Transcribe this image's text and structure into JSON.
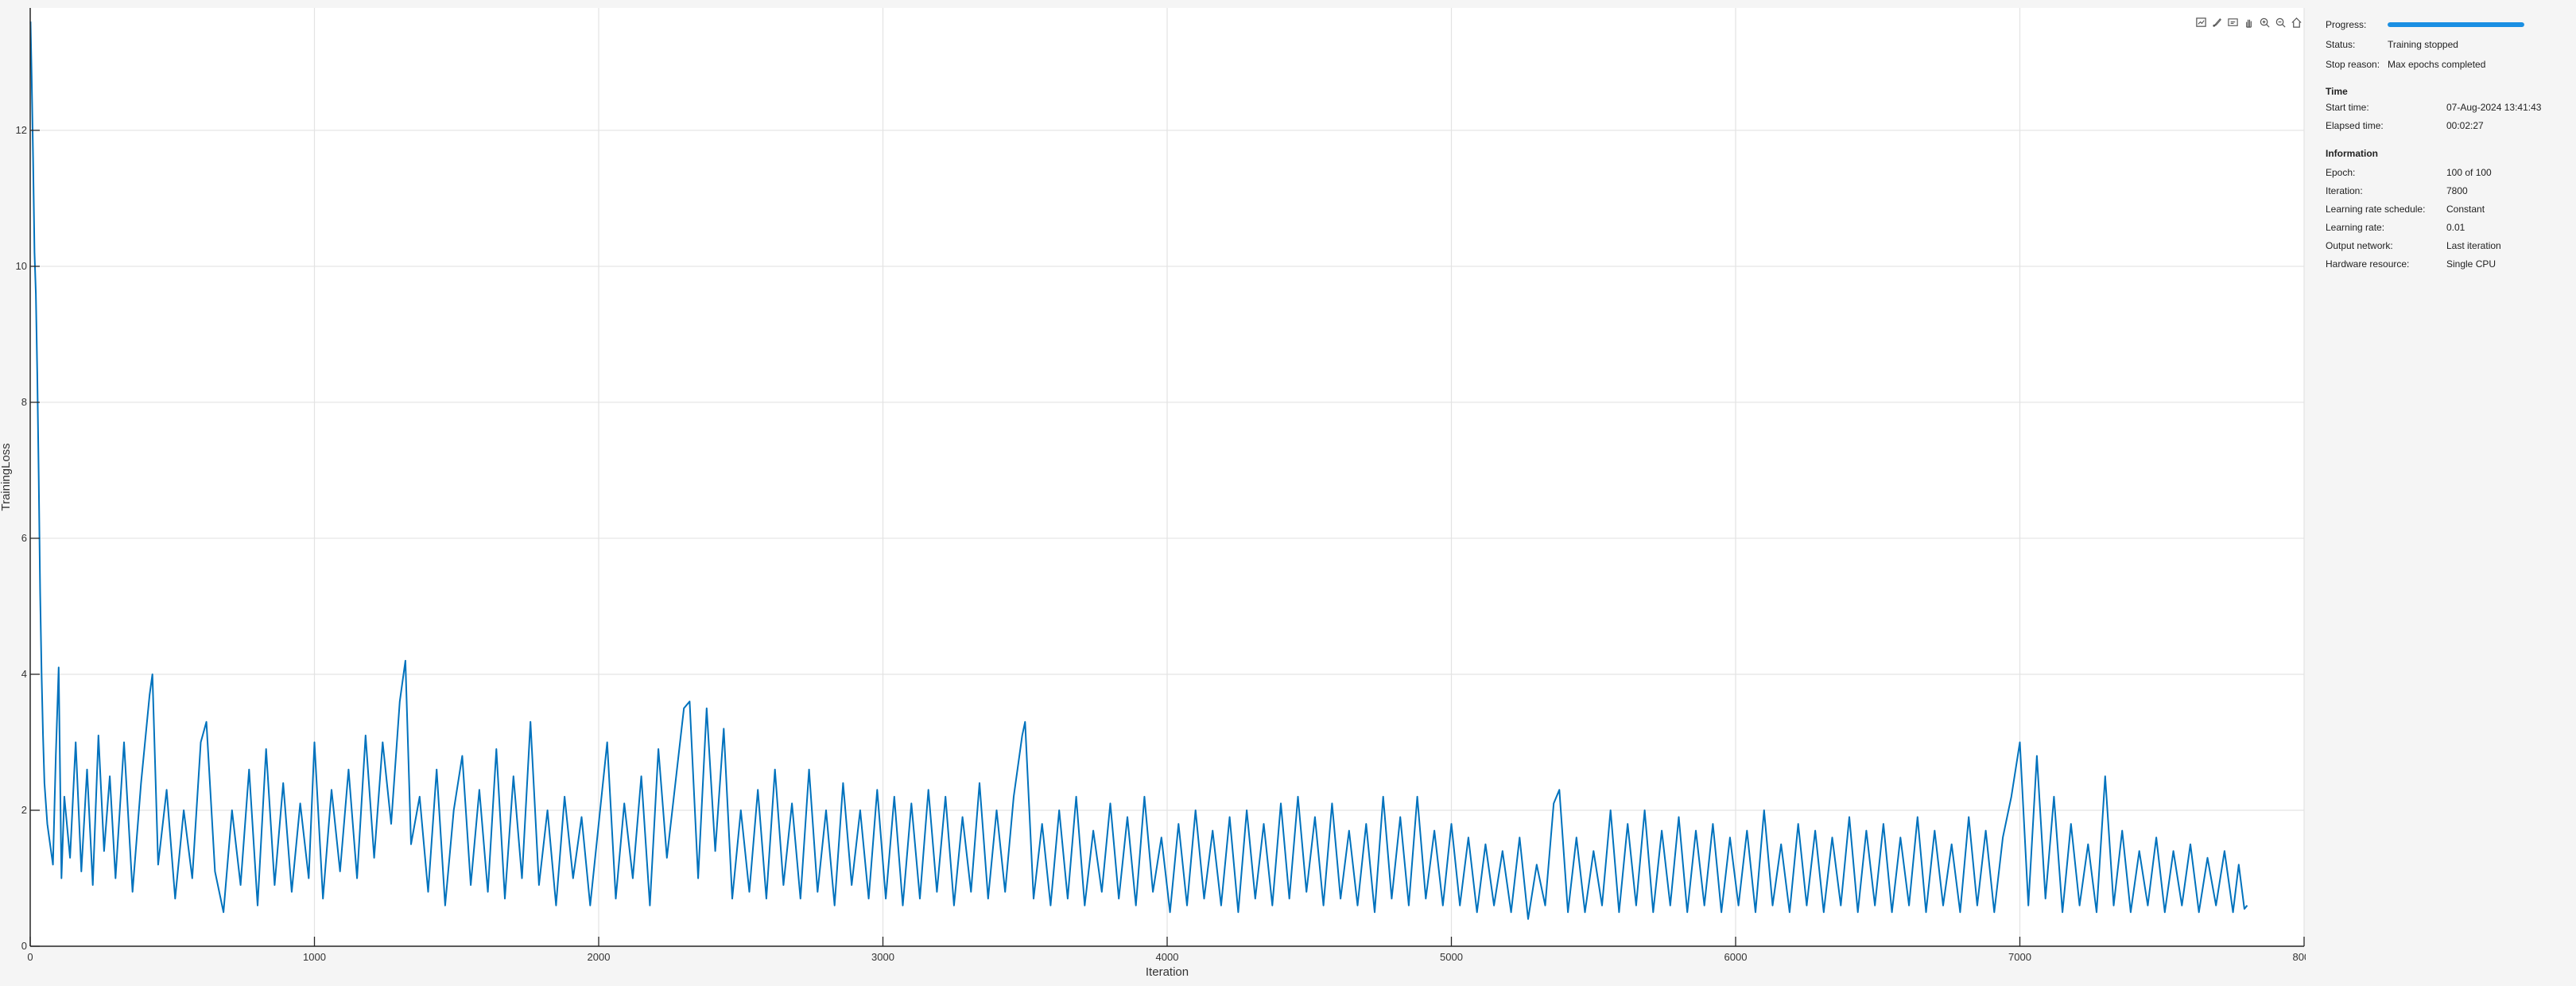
{
  "toolbar": {
    "icons": [
      "export-icon",
      "brush-icon",
      "datatip-icon",
      "pan-icon",
      "zoom-in-icon",
      "zoom-out-icon",
      "home-icon"
    ]
  },
  "info": {
    "progress_label": "Progress:",
    "progress_fraction": 1.0,
    "status_label": "Status:",
    "status_value": "Training stopped",
    "stop_reason_label": "Stop reason:",
    "stop_reason_value": "Max epochs completed",
    "time_title": "Time",
    "start_time_label": "Start time:",
    "start_time_value": "07-Aug-2024 13:41:43",
    "elapsed_time_label": "Elapsed time:",
    "elapsed_time_value": "00:02:27",
    "information_title": "Information",
    "epoch_label": "Epoch:",
    "epoch_value": "100 of 100",
    "iteration_label": "Iteration:",
    "iteration_value": "7800",
    "lr_schedule_label": "Learning rate schedule:",
    "lr_schedule_value": "Constant",
    "lr_label": "Learning rate:",
    "lr_value": "0.01",
    "output_network_label": "Output network:",
    "output_network_value": "Last iteration",
    "hardware_label": "Hardware resource:",
    "hardware_value": "Single CPU"
  },
  "chart_data": {
    "type": "line",
    "xlabel": "Iteration",
    "ylabel": "TrainingLoss",
    "xlim": [
      0,
      8000
    ],
    "ylim": [
      0,
      13.8
    ],
    "xticks": [
      0,
      1000,
      2000,
      3000,
      4000,
      5000,
      6000,
      7000,
      8000
    ],
    "yticks": [
      0,
      2,
      4,
      6,
      8,
      10,
      12
    ],
    "grid": true,
    "color": "#0072BD",
    "series": [
      {
        "points": [
          [
            1,
            13.6
          ],
          [
            5,
            12.8
          ],
          [
            10,
            11.6
          ],
          [
            15,
            10.2
          ],
          [
            20,
            9.6
          ],
          [
            25,
            8.4
          ],
          [
            30,
            6.9
          ],
          [
            35,
            5.2
          ],
          [
            40,
            4.0
          ],
          [
            45,
            3.1
          ],
          [
            50,
            2.4
          ],
          [
            60,
            1.8
          ],
          [
            70,
            1.5
          ],
          [
            80,
            1.2
          ],
          [
            90,
            2.8
          ],
          [
            100,
            4.1
          ],
          [
            110,
            1.0
          ],
          [
            120,
            2.2
          ],
          [
            140,
            1.3
          ],
          [
            160,
            3.0
          ],
          [
            180,
            1.1
          ],
          [
            200,
            2.6
          ],
          [
            220,
            0.9
          ],
          [
            240,
            3.1
          ],
          [
            260,
            1.4
          ],
          [
            280,
            2.5
          ],
          [
            300,
            1.0
          ],
          [
            330,
            3.0
          ],
          [
            360,
            0.8
          ],
          [
            390,
            2.4
          ],
          [
            420,
            3.7
          ],
          [
            430,
            4.0
          ],
          [
            450,
            1.2
          ],
          [
            480,
            2.3
          ],
          [
            510,
            0.7
          ],
          [
            540,
            2.0
          ],
          [
            570,
            1.0
          ],
          [
            600,
            3.0
          ],
          [
            620,
            3.3
          ],
          [
            650,
            1.1
          ],
          [
            680,
            0.5
          ],
          [
            710,
            2.0
          ],
          [
            740,
            0.9
          ],
          [
            770,
            2.6
          ],
          [
            800,
            0.6
          ],
          [
            830,
            2.9
          ],
          [
            860,
            0.9
          ],
          [
            890,
            2.4
          ],
          [
            920,
            0.8
          ],
          [
            950,
            2.1
          ],
          [
            980,
            1.0
          ],
          [
            1000,
            3.0
          ],
          [
            1030,
            0.7
          ],
          [
            1060,
            2.3
          ],
          [
            1090,
            1.1
          ],
          [
            1120,
            2.6
          ],
          [
            1150,
            1.0
          ],
          [
            1180,
            3.1
          ],
          [
            1210,
            1.3
          ],
          [
            1240,
            3.0
          ],
          [
            1270,
            1.8
          ],
          [
            1300,
            3.6
          ],
          [
            1320,
            4.2
          ],
          [
            1340,
            1.5
          ],
          [
            1370,
            2.2
          ],
          [
            1400,
            0.8
          ],
          [
            1430,
            2.6
          ],
          [
            1460,
            0.6
          ],
          [
            1490,
            2.0
          ],
          [
            1520,
            2.8
          ],
          [
            1550,
            0.9
          ],
          [
            1580,
            2.3
          ],
          [
            1610,
            0.8
          ],
          [
            1640,
            2.9
          ],
          [
            1670,
            0.7
          ],
          [
            1700,
            2.5
          ],
          [
            1730,
            1.0
          ],
          [
            1760,
            3.3
          ],
          [
            1790,
            0.9
          ],
          [
            1820,
            2.0
          ],
          [
            1850,
            0.6
          ],
          [
            1880,
            2.2
          ],
          [
            1910,
            1.0
          ],
          [
            1940,
            1.9
          ],
          [
            1970,
            0.6
          ],
          [
            2000,
            1.8
          ],
          [
            2030,
            3.0
          ],
          [
            2060,
            0.7
          ],
          [
            2090,
            2.1
          ],
          [
            2120,
            1.0
          ],
          [
            2150,
            2.5
          ],
          [
            2180,
            0.6
          ],
          [
            2210,
            2.9
          ],
          [
            2240,
            1.3
          ],
          [
            2270,
            2.4
          ],
          [
            2300,
            3.5
          ],
          [
            2320,
            3.6
          ],
          [
            2350,
            1.0
          ],
          [
            2380,
            3.5
          ],
          [
            2410,
            1.4
          ],
          [
            2440,
            3.2
          ],
          [
            2470,
            0.7
          ],
          [
            2500,
            2.0
          ],
          [
            2530,
            0.8
          ],
          [
            2560,
            2.3
          ],
          [
            2590,
            0.7
          ],
          [
            2620,
            2.6
          ],
          [
            2650,
            0.9
          ],
          [
            2680,
            2.1
          ],
          [
            2710,
            0.7
          ],
          [
            2740,
            2.6
          ],
          [
            2770,
            0.8
          ],
          [
            2800,
            2.0
          ],
          [
            2830,
            0.6
          ],
          [
            2860,
            2.4
          ],
          [
            2890,
            0.9
          ],
          [
            2920,
            2.0
          ],
          [
            2950,
            0.7
          ],
          [
            2980,
            2.3
          ],
          [
            3010,
            0.7
          ],
          [
            3040,
            2.2
          ],
          [
            3070,
            0.6
          ],
          [
            3100,
            2.1
          ],
          [
            3130,
            0.7
          ],
          [
            3160,
            2.3
          ],
          [
            3190,
            0.8
          ],
          [
            3220,
            2.2
          ],
          [
            3250,
            0.6
          ],
          [
            3280,
            1.9
          ],
          [
            3310,
            0.8
          ],
          [
            3340,
            2.4
          ],
          [
            3370,
            0.7
          ],
          [
            3400,
            2.0
          ],
          [
            3430,
            0.8
          ],
          [
            3460,
            2.2
          ],
          [
            3490,
            3.1
          ],
          [
            3500,
            3.3
          ],
          [
            3530,
            0.7
          ],
          [
            3560,
            1.8
          ],
          [
            3590,
            0.6
          ],
          [
            3620,
            2.0
          ],
          [
            3650,
            0.7
          ],
          [
            3680,
            2.2
          ],
          [
            3710,
            0.6
          ],
          [
            3740,
            1.7
          ],
          [
            3770,
            0.8
          ],
          [
            3800,
            2.1
          ],
          [
            3830,
            0.7
          ],
          [
            3860,
            1.9
          ],
          [
            3890,
            0.6
          ],
          [
            3920,
            2.2
          ],
          [
            3950,
            0.8
          ],
          [
            3980,
            1.6
          ],
          [
            4010,
            0.5
          ],
          [
            4040,
            1.8
          ],
          [
            4070,
            0.6
          ],
          [
            4100,
            2.0
          ],
          [
            4130,
            0.7
          ],
          [
            4160,
            1.7
          ],
          [
            4190,
            0.6
          ],
          [
            4220,
            1.9
          ],
          [
            4250,
            0.5
          ],
          [
            4280,
            2.0
          ],
          [
            4310,
            0.7
          ],
          [
            4340,
            1.8
          ],
          [
            4370,
            0.6
          ],
          [
            4400,
            2.1
          ],
          [
            4430,
            0.7
          ],
          [
            4460,
            2.2
          ],
          [
            4490,
            0.8
          ],
          [
            4520,
            1.9
          ],
          [
            4550,
            0.6
          ],
          [
            4580,
            2.1
          ],
          [
            4610,
            0.7
          ],
          [
            4640,
            1.7
          ],
          [
            4670,
            0.6
          ],
          [
            4700,
            1.8
          ],
          [
            4730,
            0.5
          ],
          [
            4760,
            2.2
          ],
          [
            4790,
            0.7
          ],
          [
            4820,
            1.9
          ],
          [
            4850,
            0.6
          ],
          [
            4880,
            2.2
          ],
          [
            4910,
            0.7
          ],
          [
            4940,
            1.7
          ],
          [
            4970,
            0.6
          ],
          [
            5000,
            1.8
          ],
          [
            5030,
            0.6
          ],
          [
            5060,
            1.6
          ],
          [
            5090,
            0.5
          ],
          [
            5120,
            1.5
          ],
          [
            5150,
            0.6
          ],
          [
            5180,
            1.4
          ],
          [
            5210,
            0.5
          ],
          [
            5240,
            1.6
          ],
          [
            5270,
            0.4
          ],
          [
            5300,
            1.2
          ],
          [
            5330,
            0.6
          ],
          [
            5360,
            2.1
          ],
          [
            5380,
            2.3
          ],
          [
            5410,
            0.5
          ],
          [
            5440,
            1.6
          ],
          [
            5470,
            0.5
          ],
          [
            5500,
            1.4
          ],
          [
            5530,
            0.6
          ],
          [
            5560,
            2.0
          ],
          [
            5590,
            0.5
          ],
          [
            5620,
            1.8
          ],
          [
            5650,
            0.6
          ],
          [
            5680,
            2.0
          ],
          [
            5710,
            0.5
          ],
          [
            5740,
            1.7
          ],
          [
            5770,
            0.6
          ],
          [
            5800,
            1.9
          ],
          [
            5830,
            0.5
          ],
          [
            5860,
            1.7
          ],
          [
            5890,
            0.6
          ],
          [
            5920,
            1.8
          ],
          [
            5950,
            0.5
          ],
          [
            5980,
            1.6
          ],
          [
            6010,
            0.6
          ],
          [
            6040,
            1.7
          ],
          [
            6070,
            0.5
          ],
          [
            6100,
            2.0
          ],
          [
            6130,
            0.6
          ],
          [
            6160,
            1.5
          ],
          [
            6190,
            0.5
          ],
          [
            6220,
            1.8
          ],
          [
            6250,
            0.6
          ],
          [
            6280,
            1.7
          ],
          [
            6310,
            0.5
          ],
          [
            6340,
            1.6
          ],
          [
            6370,
            0.6
          ],
          [
            6400,
            1.9
          ],
          [
            6430,
            0.5
          ],
          [
            6460,
            1.7
          ],
          [
            6490,
            0.6
          ],
          [
            6520,
            1.8
          ],
          [
            6550,
            0.5
          ],
          [
            6580,
            1.6
          ],
          [
            6610,
            0.6
          ],
          [
            6640,
            1.9
          ],
          [
            6670,
            0.5
          ],
          [
            6700,
            1.7
          ],
          [
            6730,
            0.6
          ],
          [
            6760,
            1.5
          ],
          [
            6790,
            0.5
          ],
          [
            6820,
            1.9
          ],
          [
            6850,
            0.6
          ],
          [
            6880,
            1.7
          ],
          [
            6910,
            0.5
          ],
          [
            6940,
            1.6
          ],
          [
            6970,
            2.2
          ],
          [
            7000,
            3.0
          ],
          [
            7030,
            0.6
          ],
          [
            7060,
            2.8
          ],
          [
            7090,
            0.7
          ],
          [
            7120,
            2.2
          ],
          [
            7150,
            0.5
          ],
          [
            7180,
            1.8
          ],
          [
            7210,
            0.6
          ],
          [
            7240,
            1.5
          ],
          [
            7270,
            0.5
          ],
          [
            7300,
            2.5
          ],
          [
            7330,
            0.6
          ],
          [
            7360,
            1.7
          ],
          [
            7390,
            0.5
          ],
          [
            7420,
            1.4
          ],
          [
            7450,
            0.6
          ],
          [
            7480,
            1.6
          ],
          [
            7510,
            0.5
          ],
          [
            7540,
            1.4
          ],
          [
            7570,
            0.6
          ],
          [
            7600,
            1.5
          ],
          [
            7630,
            0.5
          ],
          [
            7660,
            1.3
          ],
          [
            7690,
            0.6
          ],
          [
            7720,
            1.4
          ],
          [
            7750,
            0.5
          ],
          [
            7770,
            1.2
          ],
          [
            7790,
            0.55
          ],
          [
            7800,
            0.6
          ]
        ]
      }
    ]
  }
}
